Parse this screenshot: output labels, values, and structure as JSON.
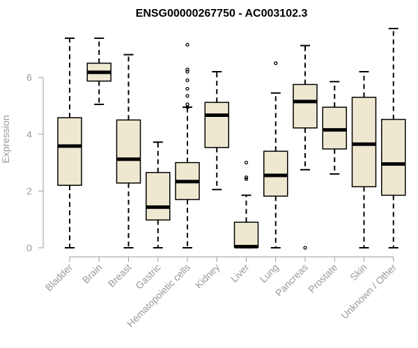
{
  "chart_data": {
    "type": "boxplot",
    "title": "ENSG00000267750 - AC003102.3",
    "ylabel": "Expression",
    "ylim": [
      0,
      7.8
    ],
    "yticks": [
      0,
      2,
      4,
      6
    ],
    "box_fill": "#EEE8D0",
    "categories": [
      "Bladder",
      "Brain",
      "Breast",
      "Gastric",
      "Hematopoietic cells",
      "Kidney",
      "Liver",
      "Lung",
      "Pancreas",
      "Prostate",
      "Skin",
      "Unknown / Other"
    ],
    "boxes": [
      {
        "whisker_low": 0,
        "q1": 2.2,
        "median": 3.58,
        "q3": 4.58,
        "whisker_high": 7.38,
        "outliers": []
      },
      {
        "whisker_low": 5.05,
        "q1": 5.87,
        "median": 6.18,
        "q3": 6.5,
        "whisker_high": 7.38,
        "outliers": []
      },
      {
        "whisker_low": 0,
        "q1": 2.28,
        "median": 3.12,
        "q3": 4.5,
        "whisker_high": 6.8,
        "outliers": []
      },
      {
        "whisker_low": 0,
        "q1": 0.98,
        "median": 1.43,
        "q3": 2.65,
        "whisker_high": 3.72,
        "outliers": []
      },
      {
        "whisker_low": 0,
        "q1": 1.7,
        "median": 2.33,
        "q3": 3.0,
        "whisker_high": 4.95,
        "outliers": [
          4.95,
          5.05,
          5.35,
          5.6,
          5.9,
          6.2,
          6.28,
          7.15
        ]
      },
      {
        "whisker_low": 2.05,
        "q1": 3.53,
        "median": 4.67,
        "q3": 5.12,
        "whisker_high": 6.2,
        "outliers": []
      },
      {
        "whisker_low": 0,
        "q1": 0.02,
        "median": 0.04,
        "q3": 0.9,
        "whisker_high": 1.85,
        "outliers": [
          2.42,
          2.48,
          3.0
        ]
      },
      {
        "whisker_low": 0,
        "q1": 1.82,
        "median": 2.55,
        "q3": 3.4,
        "whisker_high": 5.45,
        "outliers": [
          6.5
        ]
      },
      {
        "whisker_low": 2.75,
        "q1": 4.22,
        "median": 5.15,
        "q3": 5.75,
        "whisker_high": 7.12,
        "outliers": [
          0
        ]
      },
      {
        "whisker_low": 2.6,
        "q1": 3.48,
        "median": 4.15,
        "q3": 4.95,
        "whisker_high": 5.85,
        "outliers": []
      },
      {
        "whisker_low": 0,
        "q1": 2.15,
        "median": 3.65,
        "q3": 5.3,
        "whisker_high": 6.2,
        "outliers": []
      },
      {
        "whisker_low": 0,
        "q1": 1.85,
        "median": 2.95,
        "q3": 4.52,
        "whisker_high": 7.72,
        "outliers": []
      }
    ]
  }
}
